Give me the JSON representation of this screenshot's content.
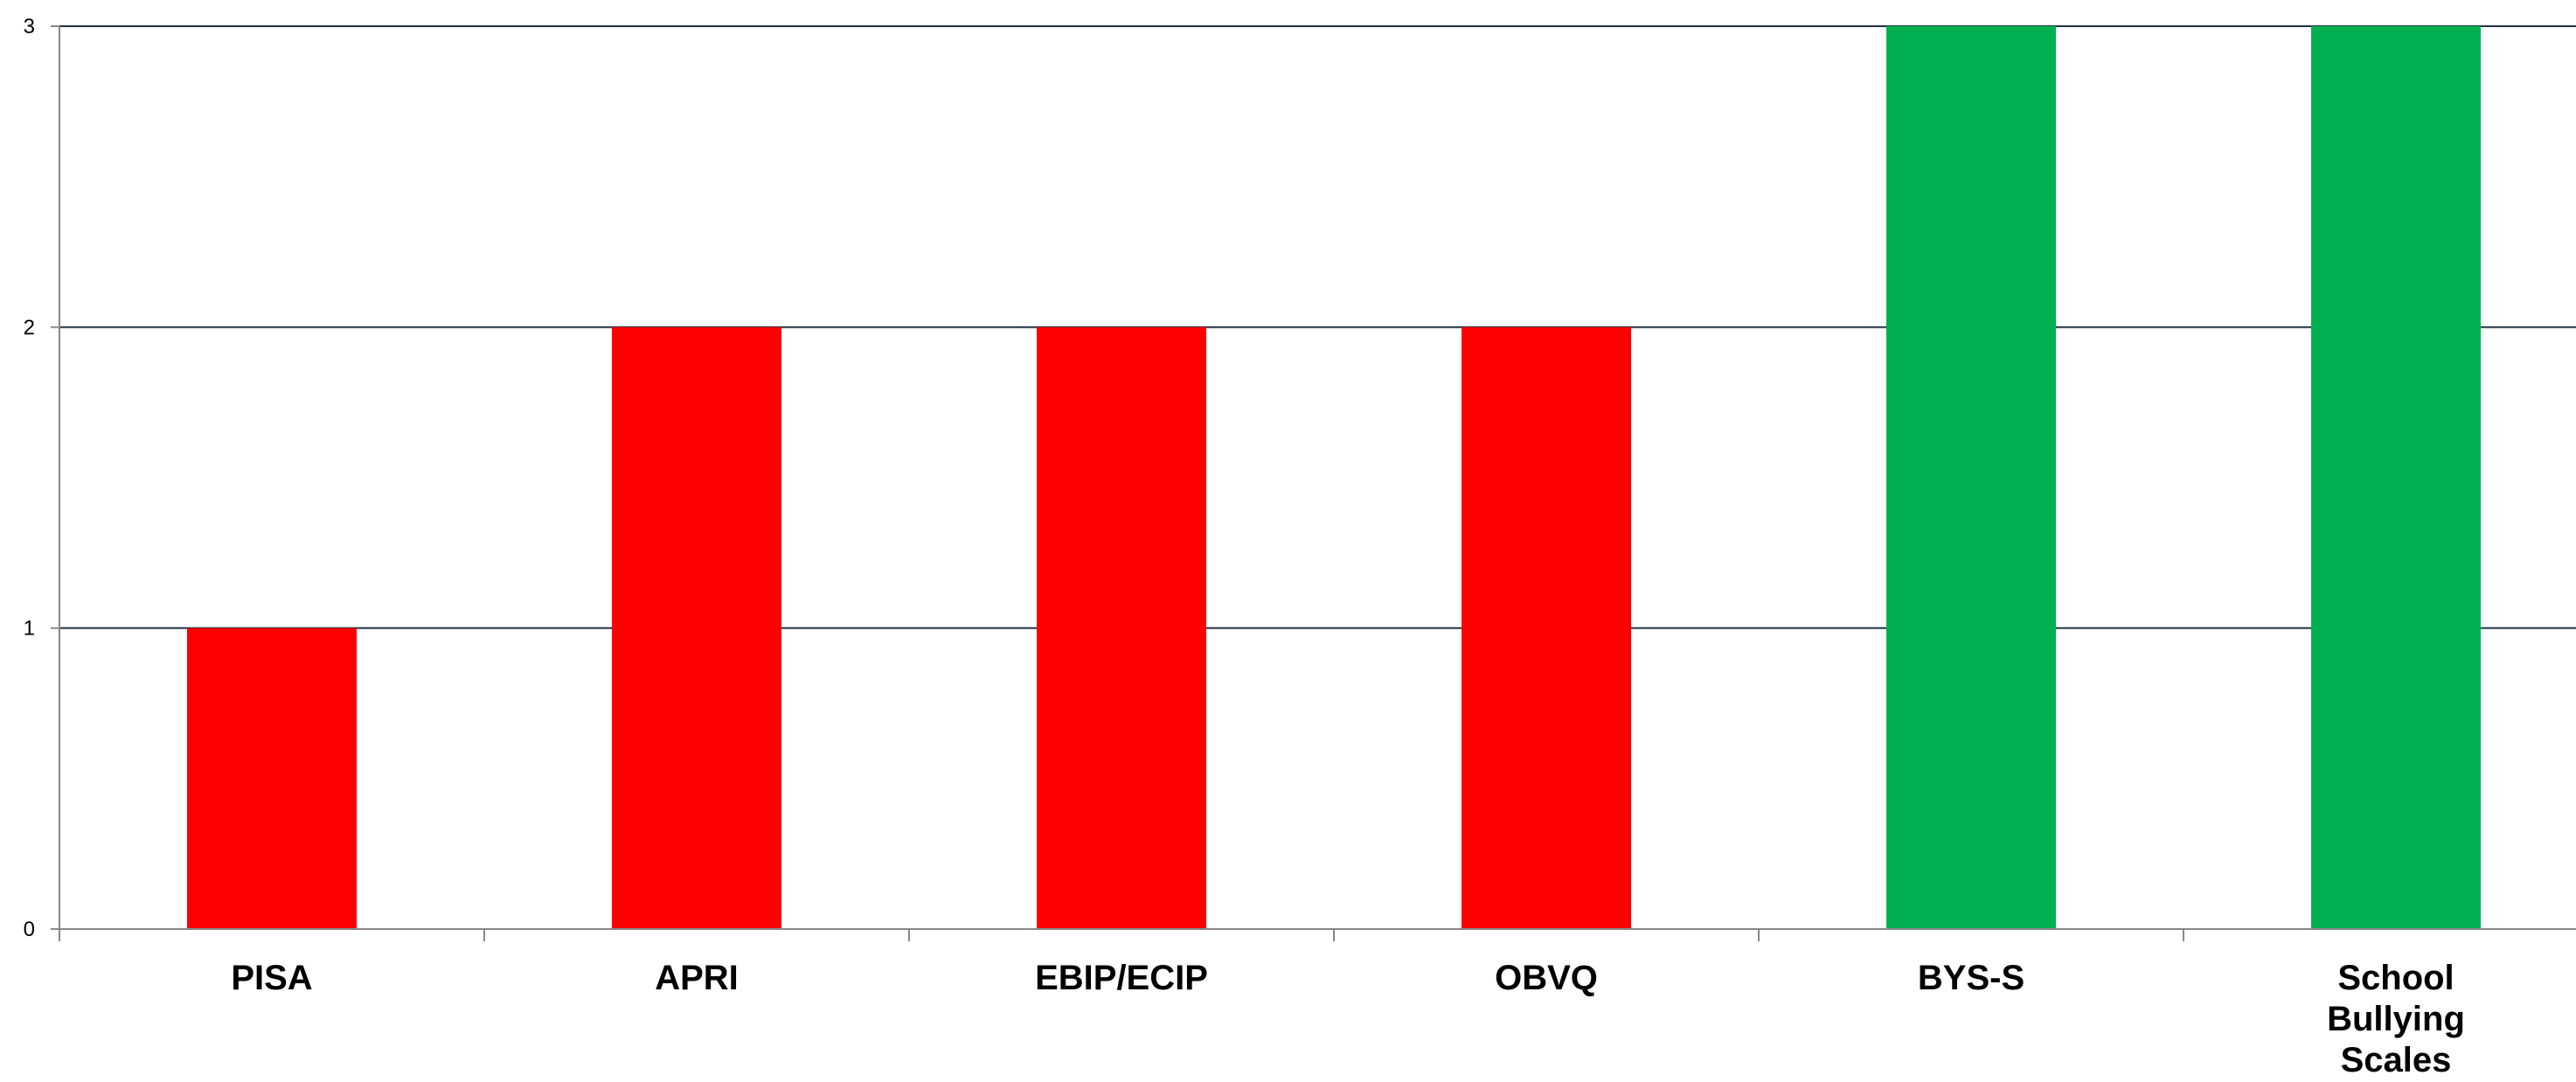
{
  "chart_data": {
    "type": "bar",
    "categories": [
      [
        "PISA"
      ],
      [
        "APRI"
      ],
      [
        "EBIP/ECIP"
      ],
      [
        "OBVQ"
      ],
      [
        "BYS-S"
      ],
      [
        "School",
        "Bullying",
        "Scales"
      ]
    ],
    "values": [
      1,
      2,
      2,
      2,
      3,
      3
    ],
    "bar_colors": [
      "#ff0000",
      "#ff0000",
      "#ff0000",
      "#ff0000",
      "#00b050",
      "#00b050"
    ],
    "ylim": [
      0,
      3
    ],
    "yticks": [
      "0",
      "1",
      "2",
      "3"
    ],
    "grid": true,
    "gridline_color": "#1f3040",
    "axis_color": "#888888",
    "title": "",
    "xlabel": "",
    "ylabel": ""
  }
}
